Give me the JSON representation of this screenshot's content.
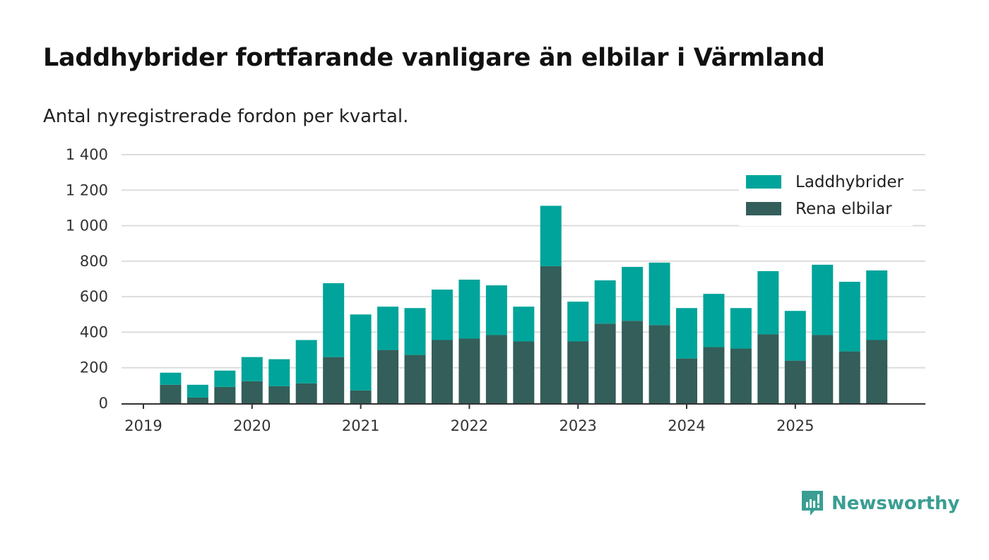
{
  "title": "Laddhybrider fortfarande vanligare än elbilar i Värmland",
  "subtitle": "Antal nyregistrerade fordon per kvartal.",
  "brand": "Newsworthy",
  "chart_data": {
    "type": "bar",
    "stacked": true,
    "title": "Laddhybrider fortfarande vanligare än elbilar i Värmland",
    "subtitle": "Antal nyregistrerade fordon per kvartal.",
    "xlabel": "",
    "ylabel": "",
    "ylim": [
      0,
      1400
    ],
    "yticks": [
      0,
      200,
      400,
      600,
      800,
      1000,
      1200,
      1400
    ],
    "ytick_labels": [
      "0",
      "200",
      "400",
      "600",
      "800",
      "1 000",
      "1 200",
      "1 400"
    ],
    "xtick_labels": [
      "2019",
      "2020",
      "2021",
      "2022",
      "2023",
      "2024",
      "2025"
    ],
    "legend_position": "top-right",
    "categories": [
      "2019Q2",
      "2019Q3",
      "2019Q4",
      "2020Q1",
      "2020Q2",
      "2020Q3",
      "2020Q4",
      "2021Q1",
      "2021Q2",
      "2021Q3",
      "2021Q4",
      "2022Q1",
      "2022Q2",
      "2022Q3",
      "2022Q4",
      "2023Q1",
      "2023Q2",
      "2023Q3",
      "2023Q4",
      "2024Q1",
      "2024Q2",
      "2024Q3",
      "2024Q4",
      "2025Q1",
      "2025Q2",
      "2025Q3",
      "2025Q4"
    ],
    "series": [
      {
        "name": "Rena elbilar",
        "color": "#335e59",
        "values": [
          104,
          32,
          92,
          124,
          96,
          112,
          260,
          72,
          300,
          272,
          356,
          364,
          384,
          348,
          772,
          348,
          448,
          464,
          440,
          252,
          316,
          308,
          388,
          240,
          384,
          292,
          356
        ]
      },
      {
        "name": "Laddhybrider",
        "color": "#00a49a",
        "values": [
          68,
          72,
          92,
          136,
          152,
          244,
          416,
          428,
          244,
          264,
          284,
          332,
          280,
          196,
          340,
          224,
          244,
          304,
          352,
          284,
          300,
          228,
          356,
          280,
          396,
          392,
          392
        ]
      }
    ]
  }
}
